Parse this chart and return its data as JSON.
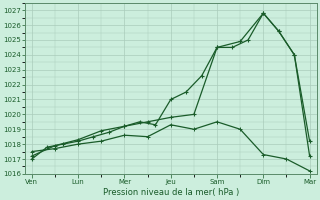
{
  "xlabel": "Pression niveau de la mer( hPa )",
  "bg_color": "#cceedd",
  "grid_color": "#aaccbb",
  "line_color": "#1a5c2a",
  "spine_color": "#5a8a6a",
  "ylim": [
    1016,
    1027.5
  ],
  "yticks": [
    1016,
    1017,
    1018,
    1019,
    1020,
    1021,
    1022,
    1023,
    1024,
    1025,
    1026,
    1027
  ],
  "day_labels": [
    "Ven",
    "Lun",
    "Mer",
    "Jeu",
    "Sam",
    "Dim",
    "Mar"
  ],
  "day_positions": [
    0,
    1,
    2,
    3,
    4,
    5,
    6
  ],
  "series1_x": [
    0.0,
    0.33,
    0.67,
    1.0,
    1.33,
    1.67,
    2.0,
    2.33,
    2.67,
    3.0,
    3.33,
    3.67,
    4.0,
    4.33,
    4.67,
    5.0,
    5.33,
    5.67,
    6.0
  ],
  "series1_y": [
    1017.0,
    1017.8,
    1018.0,
    1018.2,
    1018.5,
    1018.8,
    1019.2,
    1019.5,
    1019.3,
    1021.0,
    1021.5,
    1022.6,
    1024.5,
    1024.5,
    1025.0,
    1026.8,
    1025.6,
    1024.0,
    1018.2
  ],
  "series2_x": [
    0.0,
    0.5,
    1.0,
    1.5,
    2.0,
    2.5,
    3.0,
    3.5,
    4.0,
    4.5,
    5.0,
    5.33,
    5.67,
    6.0
  ],
  "series2_y": [
    1017.2,
    1017.9,
    1018.3,
    1018.9,
    1019.2,
    1019.5,
    1019.8,
    1020.0,
    1024.5,
    1024.9,
    1026.8,
    1025.6,
    1024.0,
    1017.2
  ],
  "series3_x": [
    0.0,
    0.5,
    1.0,
    1.5,
    2.0,
    2.5,
    3.0,
    3.5,
    4.0,
    4.5,
    5.0,
    5.5,
    6.0
  ],
  "series3_y": [
    1017.5,
    1017.7,
    1018.0,
    1018.2,
    1018.6,
    1018.5,
    1019.3,
    1019.0,
    1019.5,
    1019.0,
    1017.3,
    1017.0,
    1016.2
  ],
  "marker_size": 2.0,
  "linewidth": 0.9,
  "tick_fontsize": 5.0,
  "xlabel_fontsize": 6.0
}
